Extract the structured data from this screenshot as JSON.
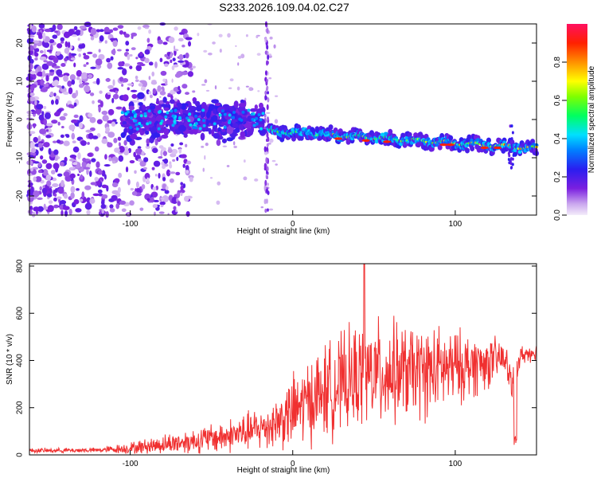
{
  "title": "S233.2026.109.04.02.C27",
  "chart_data": [
    {
      "type": "heatmap",
      "xlabel": "Height of straight line (km)",
      "ylabel": "Frequency (Hz)",
      "xlim": [
        -162,
        150
      ],
      "ylim": [
        -25,
        25
      ],
      "xticks": [
        -100,
        0,
        100
      ],
      "yticks": [
        -20,
        -10,
        0,
        10,
        20
      ],
      "colorbar": {
        "label": "Normalized spectral amplitude",
        "range": [
          0,
          1
        ],
        "ticks": [
          "0.0",
          "0.2",
          "0.4",
          "0.6",
          "0.8"
        ]
      },
      "features": [
        {
          "name": "diffuse noise",
          "x_range": [
            -162,
            -100
          ],
          "freq_range": [
            -25,
            25
          ],
          "amplitude": 0.1
        },
        {
          "name": "cluster",
          "x_range": [
            -105,
            -65
          ],
          "center_hz": 0,
          "amplitude": 0.3
        },
        {
          "name": "cluster",
          "x_range": [
            -65,
            -18
          ],
          "center_hz": 0,
          "amplitude": 0.3
        },
        {
          "name": "ridge",
          "x_range": [
            -15,
            150
          ],
          "freq_start_hz": -3,
          "freq_end_hz": -7.5,
          "amplitude_range": [
            0.3,
            0.9
          ]
        }
      ]
    },
    {
      "type": "line",
      "xlabel": "Height of straight line (km)",
      "ylabel": "SNR (10 * v/v)",
      "xlim": [
        -162,
        150
      ],
      "ylim": [
        0,
        810
      ],
      "xticks": [
        -100,
        0,
        100
      ],
      "yticks": [
        0,
        200,
        400,
        600,
        800
      ],
      "series": [
        {
          "name": "SNR",
          "color": "#f03030",
          "x_anchors": [
            -162,
            -120,
            -100,
            -80,
            -60,
            -40,
            -20,
            -10,
            0,
            10,
            20,
            30,
            40,
            50,
            60,
            70,
            80,
            90,
            100,
            110,
            120,
            130,
            135,
            140,
            150
          ],
          "baseline": [
            18,
            20,
            28,
            45,
            60,
            80,
            110,
            140,
            180,
            230,
            270,
            300,
            330,
            340,
            350,
            350,
            350,
            360,
            370,
            380,
            390,
            410,
            300,
            420,
            440
          ],
          "spread": [
            10,
            10,
            25,
            40,
            55,
            70,
            90,
            110,
            160,
            180,
            200,
            210,
            220,
            230,
            220,
            200,
            200,
            180,
            160,
            140,
            110,
            80,
            80,
            40,
            35
          ],
          "peak": {
            "x": 44,
            "y": 810
          }
        }
      ]
    }
  ]
}
